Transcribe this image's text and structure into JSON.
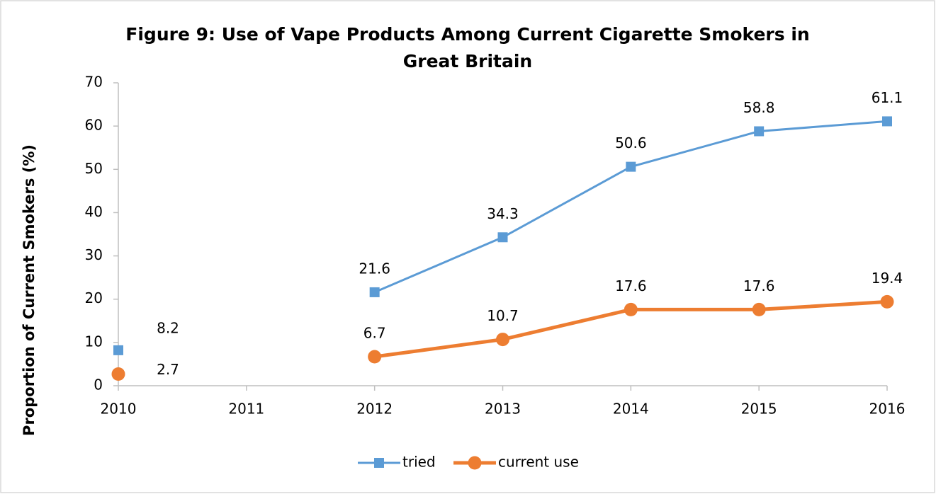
{
  "chart_data": {
    "type": "line",
    "title": "Figure 9: Use of Vape Products Among Current Cigarette Smokers in Great Britain",
    "y_label": "Proportion of Current Smokers (%)",
    "categories": [
      "2010",
      "2011",
      "2012",
      "2013",
      "2014",
      "2015",
      "2016"
    ],
    "series": [
      {
        "name": "tried",
        "color": "#5b9bd5",
        "marker": "square",
        "values": [
          8.2,
          null,
          21.6,
          34.3,
          50.6,
          58.8,
          61.1
        ]
      },
      {
        "name": "current use",
        "color": "#ed7d31",
        "marker": "circle",
        "values": [
          2.7,
          null,
          6.7,
          10.7,
          17.6,
          17.6,
          19.4
        ]
      }
    ],
    "ylim": [
      0,
      70
    ],
    "yticks": [
      0,
      10,
      20,
      30,
      40,
      50,
      60,
      70
    ],
    "grid": false,
    "legend": "bottom"
  }
}
